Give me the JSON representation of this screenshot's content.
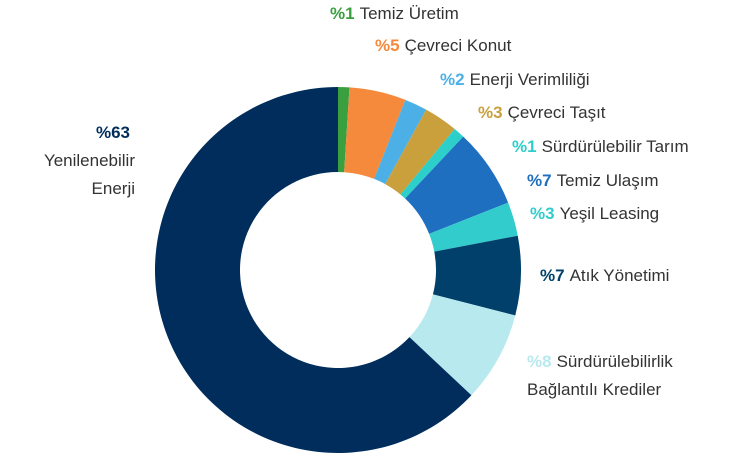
{
  "chart_data": {
    "type": "donut",
    "categories": [
      "Temiz Üretim",
      "Çevreci Konut",
      "Enerji Verimliliği",
      "Çevreci Taşıt",
      "Sürdürülebilir Tarım",
      "Temiz Ulaşım",
      "Yeşil Leasing",
      "Atık Yönetimi",
      "Sürdürülebilirlik Bağlantılı Krediler",
      "Yenilenebilir Enerji"
    ],
    "values": [
      1,
      5,
      2,
      3,
      1,
      7,
      3,
      7,
      8,
      63
    ],
    "value_labels": [
      "%1",
      "%5",
      "%2",
      "%3",
      "%1",
      "%7",
      "%3",
      "%7",
      "%8",
      "%63"
    ],
    "colors": [
      "#3a9f3f",
      "#f58a3c",
      "#4cb0e6",
      "#c9a03c",
      "#2ccfc9",
      "#1f6fc0",
      "#33cccc",
      "#00406a",
      "#b8e9ee",
      "#002d5c"
    ]
  }
}
